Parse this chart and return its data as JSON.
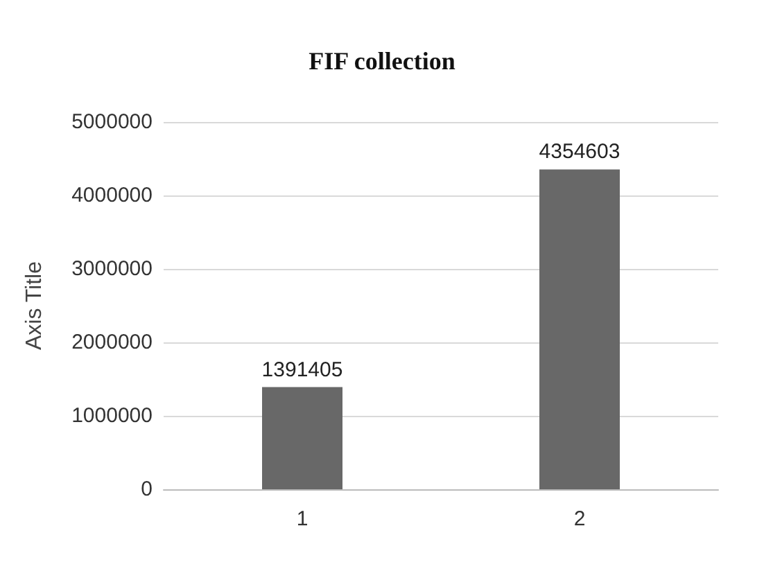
{
  "chart_data": {
    "type": "bar",
    "title": "FIF collection",
    "ylabel": "Axis Title",
    "categories": [
      "1",
      "2"
    ],
    "values": [
      1391405,
      4354603
    ],
    "color": "#686868",
    "ylim": [
      0,
      5000000
    ],
    "yticks": [
      0,
      1000000,
      2000000,
      3000000,
      4000000,
      5000000
    ],
    "grid": "y",
    "data_labels": true
  }
}
